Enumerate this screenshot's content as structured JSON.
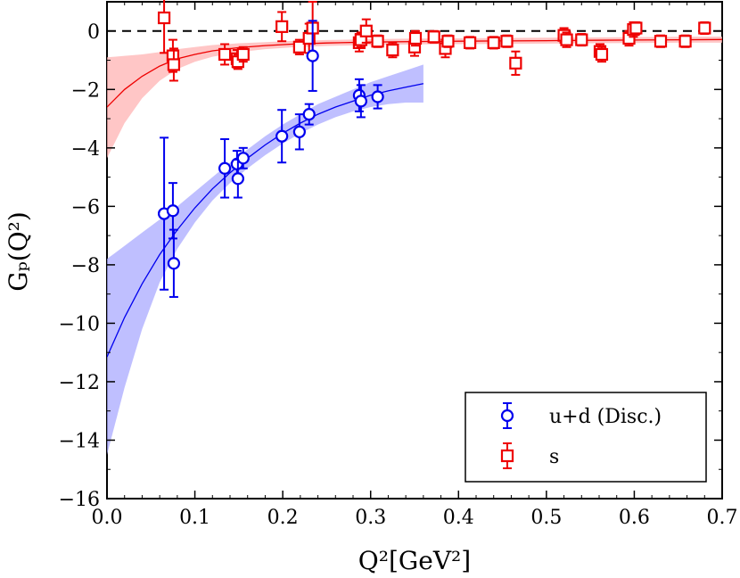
{
  "chart_data": {
    "type": "scatter",
    "title": "",
    "xlabel": "Q²[GeV²]",
    "ylabel": "Gₚ(Q²)",
    "xlim": [
      0.0,
      0.7
    ],
    "ylim": [
      -16,
      1
    ],
    "xticks": [
      0.0,
      0.1,
      0.2,
      0.3,
      0.4,
      0.5,
      0.6,
      0.7
    ],
    "yticks": [
      0,
      -2,
      -4,
      -6,
      -8,
      -10,
      -12,
      -14,
      -16
    ],
    "xtick_labels": [
      "0.0",
      "0.1",
      "0.2",
      "0.3",
      "0.4",
      "0.5",
      "0.6",
      "0.7"
    ],
    "ytick_labels": [
      "0",
      "−2",
      "−4",
      "−6",
      "−8",
      "−10",
      "−12",
      "−14",
      "−16"
    ],
    "reference_line": {
      "y": 0,
      "style": "dashed"
    },
    "legend_position": "bottom-right",
    "series": [
      {
        "name": "u+d (Disc.)",
        "marker": "circle",
        "color": "#0000ee",
        "band_color": "#aaaaff",
        "points": [
          {
            "x": 0.065,
            "y": -6.25,
            "err": 2.6
          },
          {
            "x": 0.075,
            "y": -6.15,
            "err": 0.95
          },
          {
            "x": 0.076,
            "y": -7.95,
            "err": 1.15
          },
          {
            "x": 0.134,
            "y": -4.7,
            "err": 1.0
          },
          {
            "x": 0.148,
            "y": -4.55,
            "err": 0.45
          },
          {
            "x": 0.149,
            "y": -5.05,
            "err": 0.65
          },
          {
            "x": 0.155,
            "y": -4.35,
            "err": 0.35
          },
          {
            "x": 0.199,
            "y": -3.6,
            "err": 0.9
          },
          {
            "x": 0.219,
            "y": -3.45,
            "err": 0.6
          },
          {
            "x": 0.23,
            "y": -2.85,
            "err": 0.35
          },
          {
            "x": 0.234,
            "y": -0.85,
            "err": 1.2
          },
          {
            "x": 0.287,
            "y": -2.2,
            "err": 0.55
          },
          {
            "x": 0.289,
            "y": -2.4,
            "err": 0.55
          },
          {
            "x": 0.308,
            "y": -2.25,
            "err": 0.4
          }
        ],
        "fit": {
          "x": [
            0.0,
            0.02,
            0.04,
            0.06,
            0.08,
            0.1,
            0.12,
            0.14,
            0.16,
            0.18,
            0.2,
            0.22,
            0.24,
            0.26,
            0.28,
            0.3,
            0.32,
            0.34,
            0.36
          ],
          "y": [
            -11.15,
            -9.8,
            -8.65,
            -7.65,
            -6.8,
            -6.05,
            -5.4,
            -4.85,
            -4.35,
            -3.9,
            -3.5,
            -3.15,
            -2.85,
            -2.6,
            -2.4,
            -2.2,
            -2.05,
            -1.92,
            -1.8
          ],
          "band_lower": [
            -14.5,
            -12.2,
            -10.2,
            -8.6,
            -7.45,
            -6.55,
            -5.8,
            -5.2,
            -4.7,
            -4.25,
            -3.85,
            -3.5,
            -3.2,
            -2.95,
            -2.75,
            -2.6,
            -2.5,
            -2.45,
            -2.45
          ],
          "band_upper": [
            -7.8,
            -7.35,
            -6.9,
            -6.45,
            -6.0,
            -5.5,
            -5.0,
            -4.5,
            -4.05,
            -3.6,
            -3.2,
            -2.85,
            -2.5,
            -2.25,
            -2.0,
            -1.75,
            -1.55,
            -1.35,
            -1.15
          ]
        }
      },
      {
        "name": "s",
        "marker": "square",
        "color": "#ee0000",
        "band_color": "#ffb3b3",
        "points": [
          {
            "x": 0.065,
            "y": 0.45,
            "err": 1.2
          },
          {
            "x": 0.075,
            "y": -0.85,
            "err": 0.55
          },
          {
            "x": 0.076,
            "y": -1.15,
            "err": 0.55
          },
          {
            "x": 0.134,
            "y": -0.8,
            "err": 0.35
          },
          {
            "x": 0.148,
            "y": -0.95,
            "err": 0.3
          },
          {
            "x": 0.149,
            "y": -1.05,
            "err": 0.25
          },
          {
            "x": 0.155,
            "y": -0.8,
            "err": 0.25
          },
          {
            "x": 0.199,
            "y": 0.15,
            "err": 0.5
          },
          {
            "x": 0.219,
            "y": -0.55,
            "err": 0.25
          },
          {
            "x": 0.23,
            "y": -0.25,
            "err": 0.5
          },
          {
            "x": 0.234,
            "y": 0.1,
            "err": 0.9
          },
          {
            "x": 0.287,
            "y": -0.4,
            "err": 0.3
          },
          {
            "x": 0.289,
            "y": -0.3,
            "err": 0.25
          },
          {
            "x": 0.295,
            "y": 0.0,
            "err": 0.4
          },
          {
            "x": 0.308,
            "y": -0.35,
            "err": 0.2
          },
          {
            "x": 0.325,
            "y": -0.65,
            "err": 0.25
          },
          {
            "x": 0.35,
            "y": -0.55,
            "err": 0.3
          },
          {
            "x": 0.351,
            "y": -0.25,
            "err": 0.25
          },
          {
            "x": 0.372,
            "y": -0.2,
            "err": 0.2
          },
          {
            "x": 0.385,
            "y": -0.6,
            "err": 0.3
          },
          {
            "x": 0.388,
            "y": -0.35,
            "err": 0.2
          },
          {
            "x": 0.413,
            "y": -0.4,
            "err": 0.2
          },
          {
            "x": 0.44,
            "y": -0.4,
            "err": 0.2
          },
          {
            "x": 0.455,
            "y": -0.35,
            "err": 0.2
          },
          {
            "x": 0.465,
            "y": -1.1,
            "err": 0.4
          },
          {
            "x": 0.52,
            "y": -0.15,
            "err": 0.25
          },
          {
            "x": 0.523,
            "y": -0.3,
            "err": 0.25
          },
          {
            "x": 0.54,
            "y": -0.3,
            "err": 0.2
          },
          {
            "x": 0.561,
            "y": -0.7,
            "err": 0.25
          },
          {
            "x": 0.563,
            "y": -0.8,
            "err": 0.25
          },
          {
            "x": 0.594,
            "y": -0.25,
            "err": 0.25
          },
          {
            "x": 0.599,
            "y": 0.05,
            "err": 0.25
          },
          {
            "x": 0.602,
            "y": 0.1,
            "err": 0.2
          },
          {
            "x": 0.63,
            "y": -0.35,
            "err": 0.2
          },
          {
            "x": 0.658,
            "y": -0.35,
            "err": 0.2
          },
          {
            "x": 0.68,
            "y": 0.1,
            "err": 0.2
          }
        ],
        "fit": {
          "x": [
            0.0,
            0.02,
            0.04,
            0.06,
            0.08,
            0.1,
            0.12,
            0.15,
            0.18,
            0.21,
            0.25,
            0.3,
            0.35,
            0.4,
            0.45,
            0.5,
            0.55,
            0.6,
            0.65,
            0.7
          ],
          "y": [
            -2.6,
            -2.0,
            -1.55,
            -1.2,
            -0.95,
            -0.8,
            -0.68,
            -0.57,
            -0.5,
            -0.45,
            -0.41,
            -0.38,
            -0.36,
            -0.35,
            -0.34,
            -0.33,
            -0.32,
            -0.31,
            -0.3,
            -0.29
          ],
          "band_lower": [
            -4.35,
            -3.15,
            -2.3,
            -1.7,
            -1.3,
            -1.05,
            -0.88,
            -0.72,
            -0.62,
            -0.56,
            -0.51,
            -0.48,
            -0.46,
            -0.45,
            -0.44,
            -0.43,
            -0.42,
            -0.41,
            -0.4,
            -0.4
          ],
          "band_upper": [
            -0.9,
            -0.85,
            -0.8,
            -0.72,
            -0.62,
            -0.55,
            -0.48,
            -0.42,
            -0.38,
            -0.34,
            -0.31,
            -0.28,
            -0.26,
            -0.25,
            -0.24,
            -0.23,
            -0.22,
            -0.21,
            -0.2,
            -0.19
          ]
        }
      }
    ]
  }
}
